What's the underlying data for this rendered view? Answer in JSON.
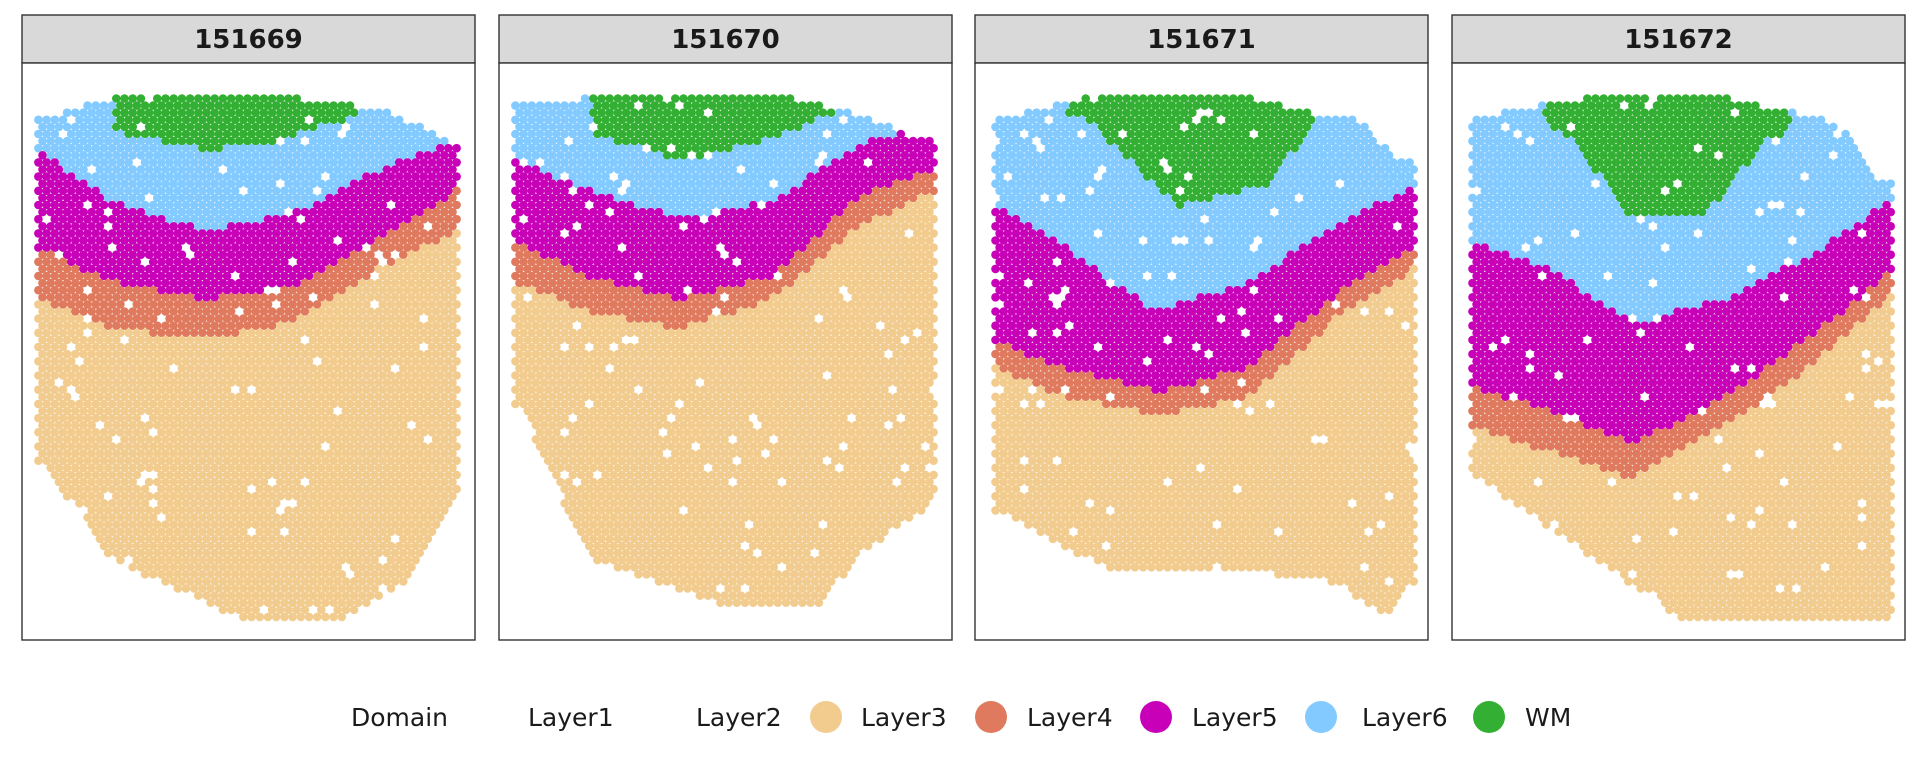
{
  "chart_data": {
    "type": "scatter",
    "panels": [
      {
        "title": "151669",
        "shape": "p1"
      },
      {
        "title": "151670",
        "shape": "p2"
      },
      {
        "title": "151671",
        "shape": "p3"
      },
      {
        "title": "151672",
        "shape": "p4"
      }
    ],
    "legend": {
      "title": "Domain",
      "placement": "bottom",
      "entries": [
        {
          "label": "Layer1",
          "color": null
        },
        {
          "label": "Layer2",
          "color": null
        },
        {
          "label": "Layer3",
          "color": "#F2CC8F"
        },
        {
          "label": "Layer4",
          "color": "#E07A5F"
        },
        {
          "label": "Layer5",
          "color": "#C800B8"
        },
        {
          "label": "Layer6",
          "color": "#82CAFF"
        },
        {
          "label": "WM",
          "color": "#33B033"
        }
      ]
    }
  }
}
